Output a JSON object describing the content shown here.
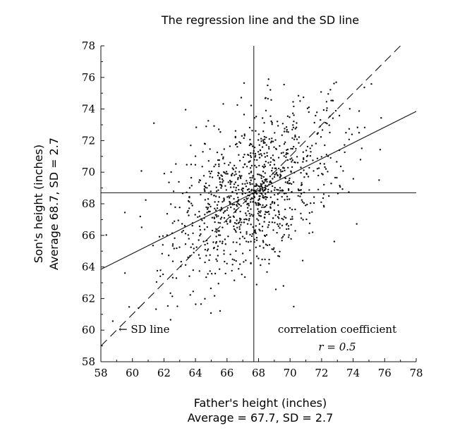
{
  "chart_data": {
    "type": "scatter",
    "title": "The regression line and the SD line",
    "xlabel": "Father's height (inches)",
    "xlabel_sub": "Average = 67.7, SD = 2.7",
    "ylabel": "Son's height (inches)",
    "ylabel_sub": "Average 68.7, SD = 2.7",
    "xlim": [
      58,
      78
    ],
    "ylim": [
      58,
      78
    ],
    "xticks": [
      58,
      60,
      62,
      64,
      66,
      68,
      70,
      72,
      74,
      76,
      78
    ],
    "yticks": [
      58,
      60,
      62,
      64,
      66,
      68,
      70,
      72,
      74,
      76,
      78
    ],
    "x_mean": 67.7,
    "y_mean": 68.7,
    "sd_x": 2.7,
    "sd_y": 2.7,
    "r": 0.5,
    "n_points": 1078,
    "regression_line": {
      "name": "regression line",
      "slope": 0.5,
      "intercept": 34.85,
      "style": "solid"
    },
    "sd_line": {
      "name": "SD line",
      "slope": 1.0,
      "intercept": 1.0,
      "style": "dashed"
    },
    "annotations": {
      "sd_line_label": "← SD line",
      "corr_label": "correlation coefficient",
      "corr_value": "r = 0.5"
    }
  }
}
